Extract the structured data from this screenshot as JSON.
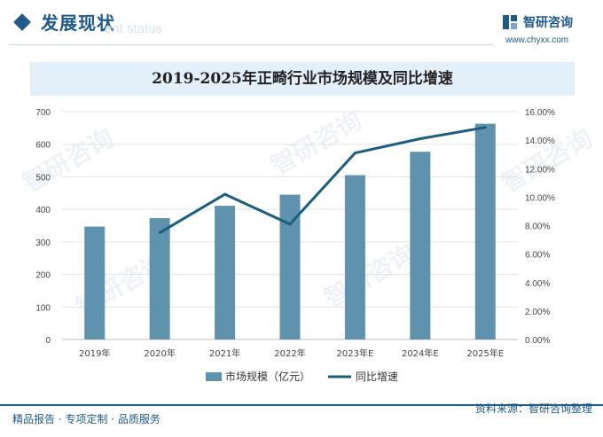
{
  "header": {
    "section_title": "发展现状",
    "section_subtitle": "ent status",
    "logo_name": "智研咨询",
    "logo_url": "www.chyxx.com"
  },
  "watermark": "智研咨询",
  "footer": {
    "left": "精品报告 · 专项定制 · 品质服务",
    "source": "资料来源：智研咨询整理"
  },
  "colors": {
    "bar": "#5f93ad",
    "line": "#1b5e7e",
    "accent": "#1e5a8a",
    "title_bg": "#e4f0f9"
  },
  "chart_data": {
    "type": "bar",
    "title": "2019-2025年正畸行业市场规模及同比增速",
    "categories": [
      "2019年",
      "2020年",
      "2021年",
      "2022年",
      "2023年E",
      "2024年E",
      "2025年E"
    ],
    "series": [
      {
        "name": "市场规模（亿元）",
        "type": "bar",
        "axis": "left",
        "values": [
          347,
          373,
          411,
          445,
          505,
          577,
          663
        ]
      },
      {
        "name": "同比增速",
        "type": "line",
        "axis": "right",
        "values": [
          null,
          7.5,
          10.2,
          8.1,
          13.1,
          14.1,
          14.9
        ]
      }
    ],
    "y_left": {
      "min": 0,
      "max": 700,
      "ticks": [
        "0",
        "100",
        "200",
        "300",
        "400",
        "500",
        "600",
        "700"
      ]
    },
    "y_right": {
      "min": 0,
      "max": 16,
      "ticks": [
        "0.00%",
        "2.00%",
        "4.00%",
        "6.00%",
        "8.00%",
        "10.00%",
        "12.00%",
        "14.00%",
        "16.00%"
      ]
    },
    "grid": true,
    "legend_position": "bottom"
  }
}
